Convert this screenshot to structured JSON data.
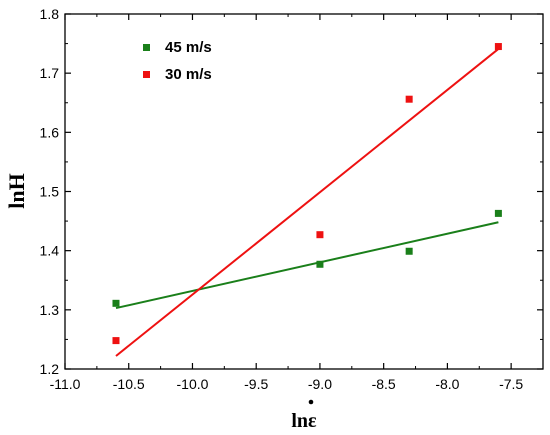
{
  "chart_data": {
    "type": "scatter",
    "title": "",
    "xlabel": "lnε",
    "ylabel": "lnH",
    "xlim": [
      -11.0,
      -7.25
    ],
    "ylim": [
      1.2,
      1.8
    ],
    "x_ticks": [
      "-11.0",
      "-10.5",
      "-10.0",
      "-9.5",
      "-9.0",
      "-8.5",
      "-8.0",
      "-7.5"
    ],
    "y_ticks": [
      "1.2",
      "1.3",
      "1.4",
      "1.5",
      "1.6",
      "1.7",
      "1.8"
    ],
    "grid": false,
    "legend_position": "top-left",
    "series": [
      {
        "name": "45 m/s",
        "color": "#1a7f1a",
        "points": [
          {
            "x": -10.6,
            "y": 1.311
          },
          {
            "x": -9.0,
            "y": 1.377
          },
          {
            "x": -8.3,
            "y": 1.399
          },
          {
            "x": -7.6,
            "y": 1.463
          }
        ],
        "fit_line": [
          {
            "x": -10.6,
            "y": 1.303
          },
          {
            "x": -7.6,
            "y": 1.448
          }
        ]
      },
      {
        "name": "30 m/s",
        "color": "#ee1111",
        "points": [
          {
            "x": -10.6,
            "y": 1.248
          },
          {
            "x": -9.0,
            "y": 1.427
          },
          {
            "x": -8.3,
            "y": 1.656
          },
          {
            "x": -7.6,
            "y": 1.745
          }
        ],
        "fit_line": [
          {
            "x": -10.6,
            "y": 1.222
          },
          {
            "x": -7.6,
            "y": 1.741
          }
        ]
      }
    ]
  }
}
